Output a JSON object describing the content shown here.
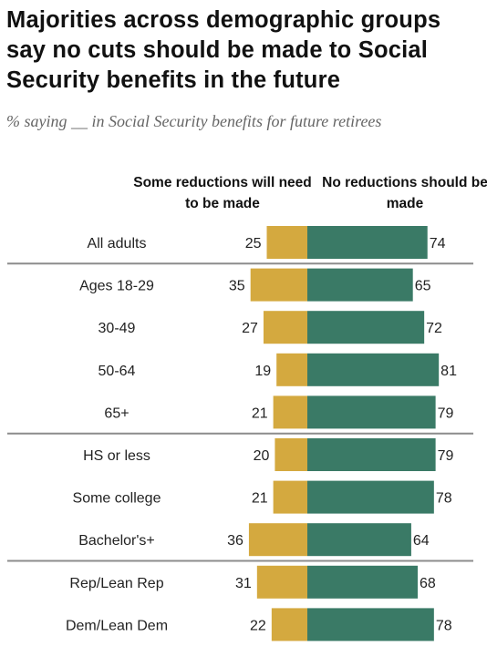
{
  "title": "Majorities across demographic groups say no cuts should be made to Social Security benefits in the future",
  "subtitle": "% saying __ in Social Security benefits for future retirees",
  "chart_data": {
    "type": "bar",
    "stacked": "diverging",
    "categories": [
      "All adults",
      "Ages 18-29",
      "30-49",
      "50-64",
      "65+",
      "HS or less",
      "Some college",
      "Bachelor's+",
      "Rep/Lean Rep",
      "Dem/Lean Dem"
    ],
    "series": [
      {
        "name": "Some reductions will need to be made",
        "color": "#d4a93f",
        "values": [
          25,
          35,
          27,
          19,
          21,
          20,
          21,
          36,
          31,
          22
        ]
      },
      {
        "name": "No reductions should be made",
        "color": "#3a7a66",
        "values": [
          74,
          65,
          72,
          81,
          79,
          79,
          78,
          64,
          68,
          78
        ]
      }
    ],
    "groups": [
      [
        "All adults"
      ],
      [
        "Ages 18-29",
        "30-49",
        "50-64",
        "65+"
      ],
      [
        "HS or less",
        "Some college",
        "Bachelor's+"
      ],
      [
        "Rep/Lean Rep",
        "Dem/Lean Dem"
      ]
    ],
    "legend_placement": "top, as column headers",
    "grid": false
  }
}
